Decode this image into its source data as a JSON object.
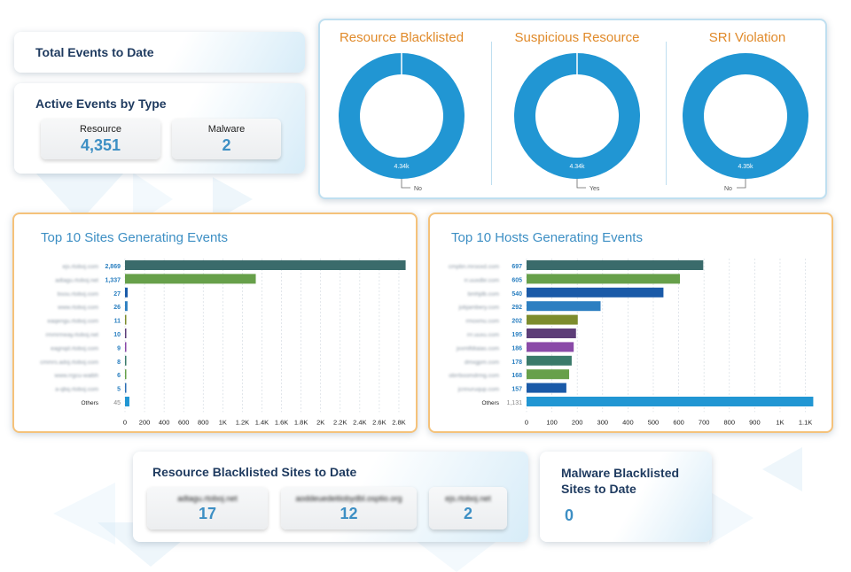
{
  "total_events": {
    "title": "Total Events to Date"
  },
  "active_events": {
    "title": "Active Events by Type",
    "tiles": [
      {
        "label": "Resource",
        "value": "4,351"
      },
      {
        "label": "Malware",
        "value": "2"
      }
    ]
  },
  "donuts": [
    {
      "title": "Resource Blacklisted",
      "center_label": "4.34k",
      "legend": "No"
    },
    {
      "title": "Suspicious Resource",
      "center_label": "4.34k",
      "legend": "Yes"
    },
    {
      "title": "SRI Violation",
      "center_label": "4.35k",
      "legend": "No"
    }
  ],
  "colors": {
    "donut": "#2196d3",
    "accent_orange": "#e08a2a",
    "title_blue": "#3d8fc4"
  },
  "chart_data": [
    {
      "type": "bar",
      "orientation": "horizontal",
      "title": "Top 10 Sites Generating Events",
      "categories": [
        "ejs.rtoboj.com",
        "adtagu.rtoboj.net",
        "bsou.rtoboj.com",
        "www.rtoboj.com",
        "eaqengu.rtoboj.com",
        "rmmrmeay.rtoboj.net",
        "eagnqd.rtoboj.com",
        "cmmrs.adoj.rtoboj.com",
        "www.rrgcu-waibh",
        "a-qbq.rtoboj.com",
        "Others"
      ],
      "values": [
        2869,
        1337,
        27,
        26,
        11,
        10,
        9,
        8,
        6,
        5,
        45
      ],
      "value_labels": [
        "2,869",
        "1,337",
        "27",
        "26",
        "11",
        "10",
        "9",
        "8",
        "6",
        "5",
        "45"
      ],
      "colors": [
        "#3a6b6b",
        "#67a04a",
        "#1a5aa8",
        "#2d7fc1",
        "#7d8c2d",
        "#5d3e78",
        "#8a4aa8",
        "#3a7a6a",
        "#67a04a",
        "#2d6fb5",
        "#2196d3"
      ],
      "xticks": [
        "0",
        "200",
        "400",
        "600",
        "800",
        "1K",
        "1.2K",
        "1.4K",
        "1.6K",
        "1.8K",
        "2K",
        "2.2K",
        "2.4K",
        "2.6K",
        "2.8K"
      ],
      "xlim": [
        0,
        2900
      ]
    },
    {
      "type": "bar",
      "orientation": "horizontal",
      "title": "Top 10 Hosts Generating Events",
      "categories": [
        "cmpbn.mrooxd.com",
        "rr.uuxdbr.com",
        "bmhjdb.com",
        "jobjambery.com",
        "rmoxmu.com",
        "rrr.uuxu.com",
        "jxxmlfdtaias.com",
        "dmxgpm.com",
        "obrrboomdrmg.com",
        "jcnnuruqup.com",
        "Others"
      ],
      "values": [
        697,
        605,
        540,
        292,
        202,
        195,
        186,
        178,
        168,
        157,
        1131
      ],
      "value_labels": [
        "697",
        "605",
        "540",
        "292",
        "202",
        "195",
        "186",
        "178",
        "168",
        "157",
        "1,131"
      ],
      "colors": [
        "#3a6b6b",
        "#67a04a",
        "#1a5aa8",
        "#2d7fc1",
        "#7d8c2d",
        "#5d3e78",
        "#8a4aa8",
        "#3a7a6a",
        "#67a04a",
        "#1a5aa8",
        "#2196d3"
      ],
      "xticks": [
        "0",
        "100",
        "200",
        "300",
        "400",
        "500",
        "600",
        "700",
        "800",
        "900",
        "1K",
        "1.1K"
      ],
      "xlim": [
        0,
        1140
      ]
    }
  ],
  "blacklisted_sites": {
    "title": "Resource Blacklisted Sites to Date",
    "tiles": [
      {
        "label": "adtagu.rtoboj.net",
        "value": "17"
      },
      {
        "label": "aoddeuedeitiobydbl.osptio.org",
        "value": "12"
      },
      {
        "label": "ejs.rtoboj.net",
        "value": "2"
      }
    ]
  },
  "malware_sites": {
    "title": "Malware Blacklisted Sites to Date",
    "value": "0"
  }
}
